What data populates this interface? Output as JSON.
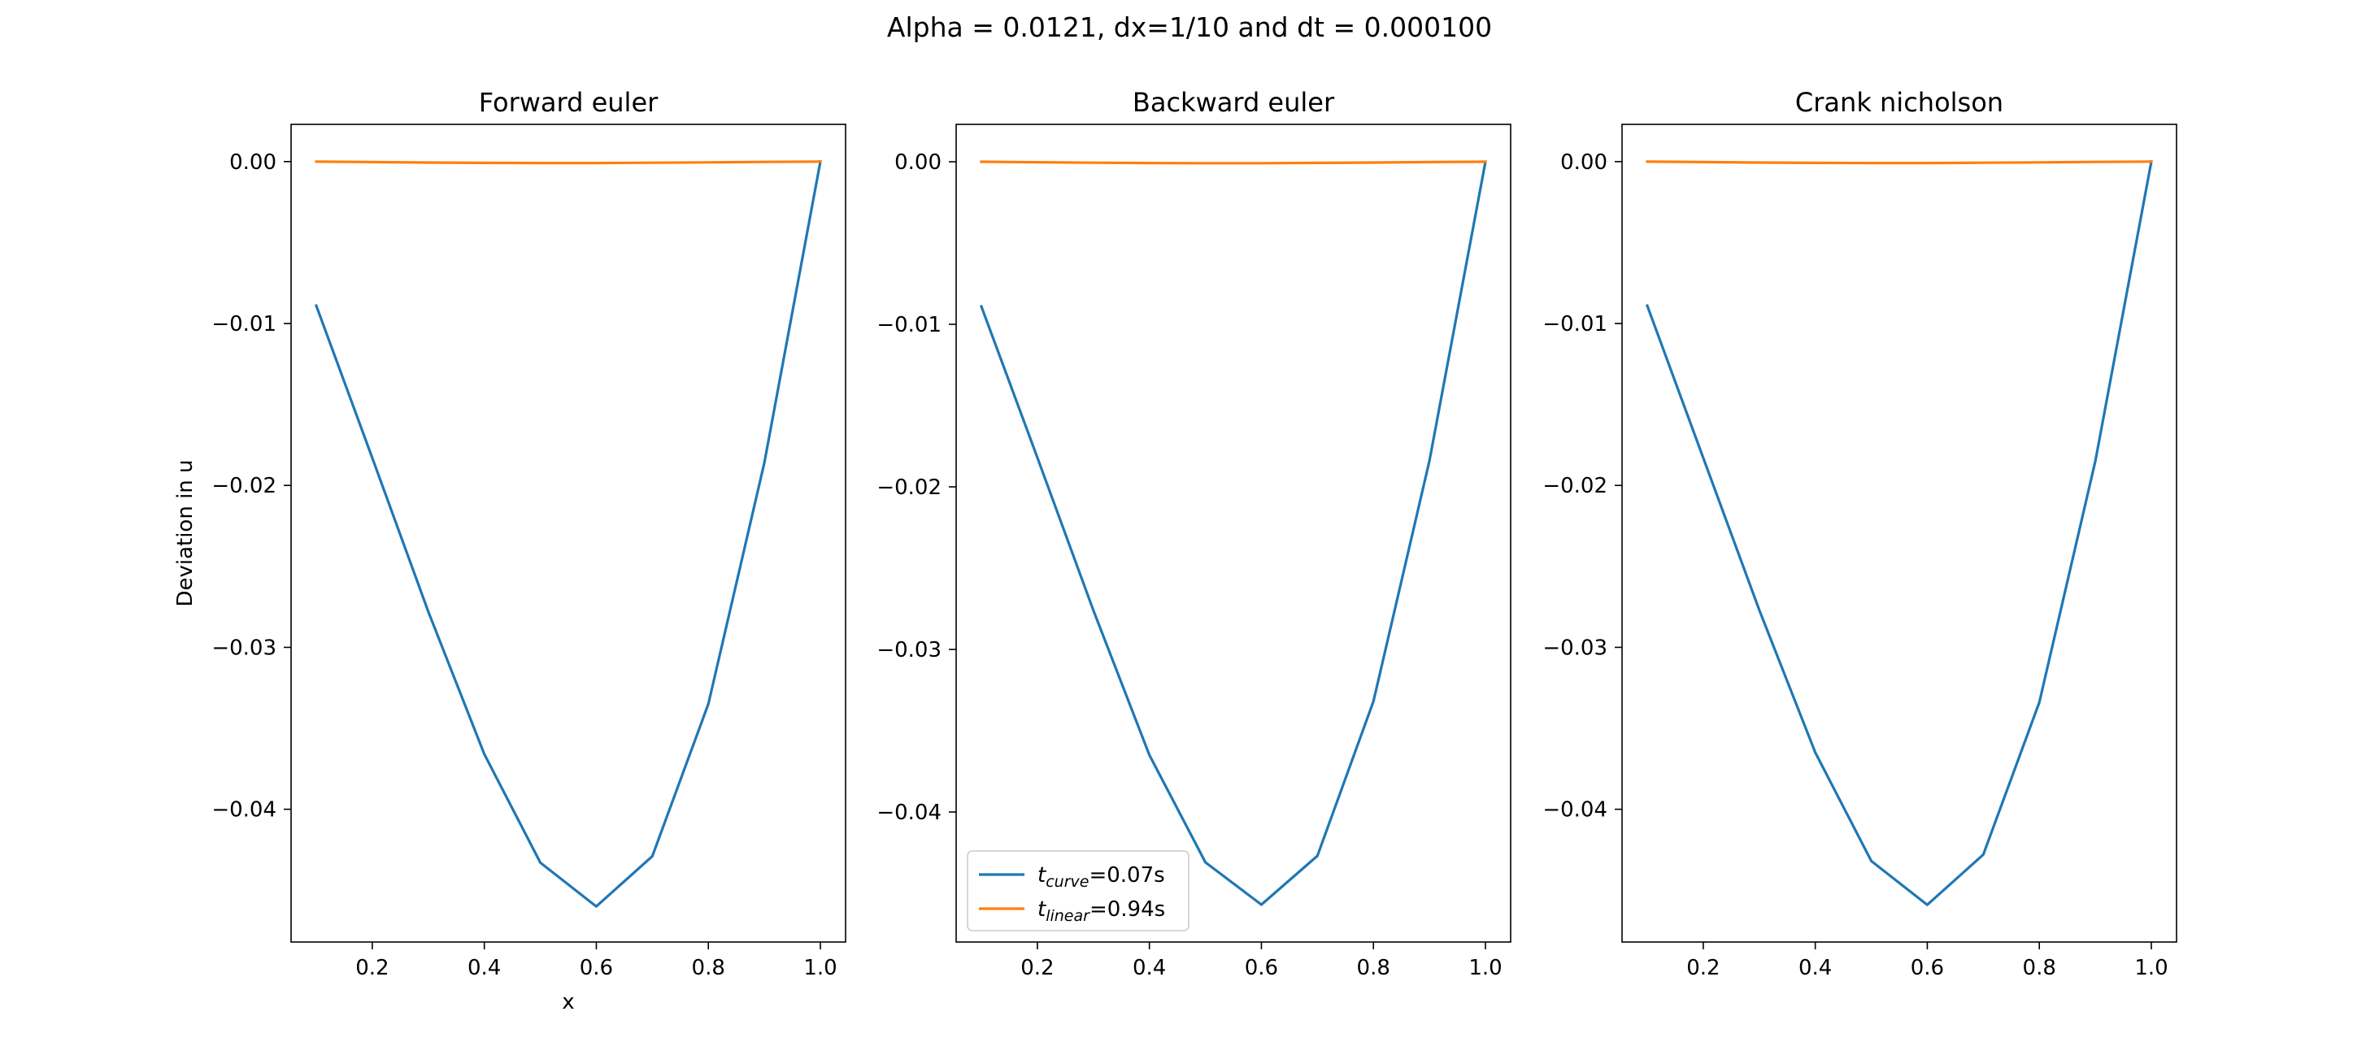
{
  "figure": {
    "suptitle": "Alpha = 0.0121, dx=1/10 and dt = 0.000100"
  },
  "colors": {
    "curve": "#1f77b4",
    "linear": "#ff7f0e"
  },
  "legend": {
    "subplot_index": 1,
    "placement": "lower left",
    "entries": [
      {
        "t": "t",
        "sub": "curve",
        "suffix": "=0.07s",
        "series": 0
      },
      {
        "t": "t",
        "sub": "linear",
        "suffix": "=0.94s",
        "series": 1
      }
    ]
  },
  "chart_data": [
    {
      "type": "line",
      "title": "Forward euler",
      "xlabel": "x",
      "ylabel": "Deviation in u",
      "xlim": [
        0.055,
        1.045
      ],
      "ylim": [
        -0.0482,
        0.0023
      ],
      "xticks": [
        0.2,
        0.4,
        0.6,
        0.8,
        1.0
      ],
      "xtick_labels": [
        "0.2",
        "0.4",
        "0.6",
        "0.8",
        "1.0"
      ],
      "yticks": [
        0.0,
        -0.01,
        -0.02,
        -0.03,
        -0.04
      ],
      "ytick_labels": [
        "0.00",
        "−0.01",
        "−0.02",
        "−0.03",
        "−0.04"
      ],
      "grid": false,
      "series": [
        {
          "x": [
            0.1,
            0.2,
            0.3,
            0.4,
            0.5,
            0.6,
            0.7,
            0.8,
            0.9,
            1.0
          ],
          "values": [
            -0.0089,
            -0.0183,
            -0.0278,
            -0.0366,
            -0.0433,
            -0.046,
            -0.0429,
            -0.0335,
            -0.0186,
            0.0
          ]
        },
        {
          "x": [
            0.1,
            0.2,
            0.3,
            0.4,
            0.5,
            0.6,
            0.7,
            0.8,
            0.9,
            1.0
          ],
          "values": [
            0.0,
            -3e-05,
            -6e-05,
            -8e-05,
            -9e-05,
            -9e-05,
            -7e-05,
            -5e-05,
            -2e-05,
            0.0
          ]
        }
      ]
    },
    {
      "type": "line",
      "title": "Backward euler",
      "xlabel": "",
      "ylabel": "",
      "xlim": [
        0.055,
        1.045
      ],
      "ylim": [
        -0.048,
        0.0023
      ],
      "xticks": [
        0.2,
        0.4,
        0.6,
        0.8,
        1.0
      ],
      "xtick_labels": [
        "0.2",
        "0.4",
        "0.6",
        "0.8",
        "1.0"
      ],
      "yticks": [
        0.0,
        -0.01,
        -0.02,
        -0.03,
        -0.04
      ],
      "ytick_labels": [
        "0.00",
        "−0.01",
        "−0.02",
        "−0.03",
        "−0.04"
      ],
      "grid": false,
      "series": [
        {
          "x": [
            0.1,
            0.2,
            0.3,
            0.4,
            0.5,
            0.6,
            0.7,
            0.8,
            0.9,
            1.0
          ],
          "values": [
            -0.0089,
            -0.0182,
            -0.0276,
            -0.0365,
            -0.0431,
            -0.0457,
            -0.0427,
            -0.0332,
            -0.0184,
            0.0
          ]
        },
        {
          "x": [
            0.1,
            0.2,
            0.3,
            0.4,
            0.5,
            0.6,
            0.7,
            0.8,
            0.9,
            1.0
          ],
          "values": [
            0.0,
            -3e-05,
            -6e-05,
            -8e-05,
            -9e-05,
            -9e-05,
            -7e-05,
            -5e-05,
            -2e-05,
            0.0
          ]
        }
      ]
    },
    {
      "type": "line",
      "title": "Crank nicholson",
      "xlabel": "",
      "ylabel": "",
      "xlim": [
        0.055,
        1.045
      ],
      "ylim": [
        -0.0482,
        0.0023
      ],
      "xticks": [
        0.2,
        0.4,
        0.6,
        0.8,
        1.0
      ],
      "xtick_labels": [
        "0.2",
        "0.4",
        "0.6",
        "0.8",
        "1.0"
      ],
      "yticks": [
        0.0,
        -0.01,
        -0.02,
        -0.03,
        -0.04
      ],
      "ytick_labels": [
        "0.00",
        "−0.01",
        "−0.02",
        "−0.03",
        "−0.04"
      ],
      "grid": false,
      "series": [
        {
          "x": [
            0.1,
            0.2,
            0.3,
            0.4,
            0.5,
            0.6,
            0.7,
            0.8,
            0.9,
            1.0
          ],
          "values": [
            -0.0089,
            -0.0183,
            -0.0277,
            -0.0365,
            -0.0432,
            -0.0459,
            -0.0428,
            -0.0334,
            -0.0185,
            0.0
          ]
        },
        {
          "x": [
            0.1,
            0.2,
            0.3,
            0.4,
            0.5,
            0.6,
            0.7,
            0.8,
            0.9,
            1.0
          ],
          "values": [
            0.0,
            -3e-05,
            -6e-05,
            -8e-05,
            -9e-05,
            -9e-05,
            -7e-05,
            -5e-05,
            -2e-05,
            0.0
          ]
        }
      ]
    }
  ]
}
